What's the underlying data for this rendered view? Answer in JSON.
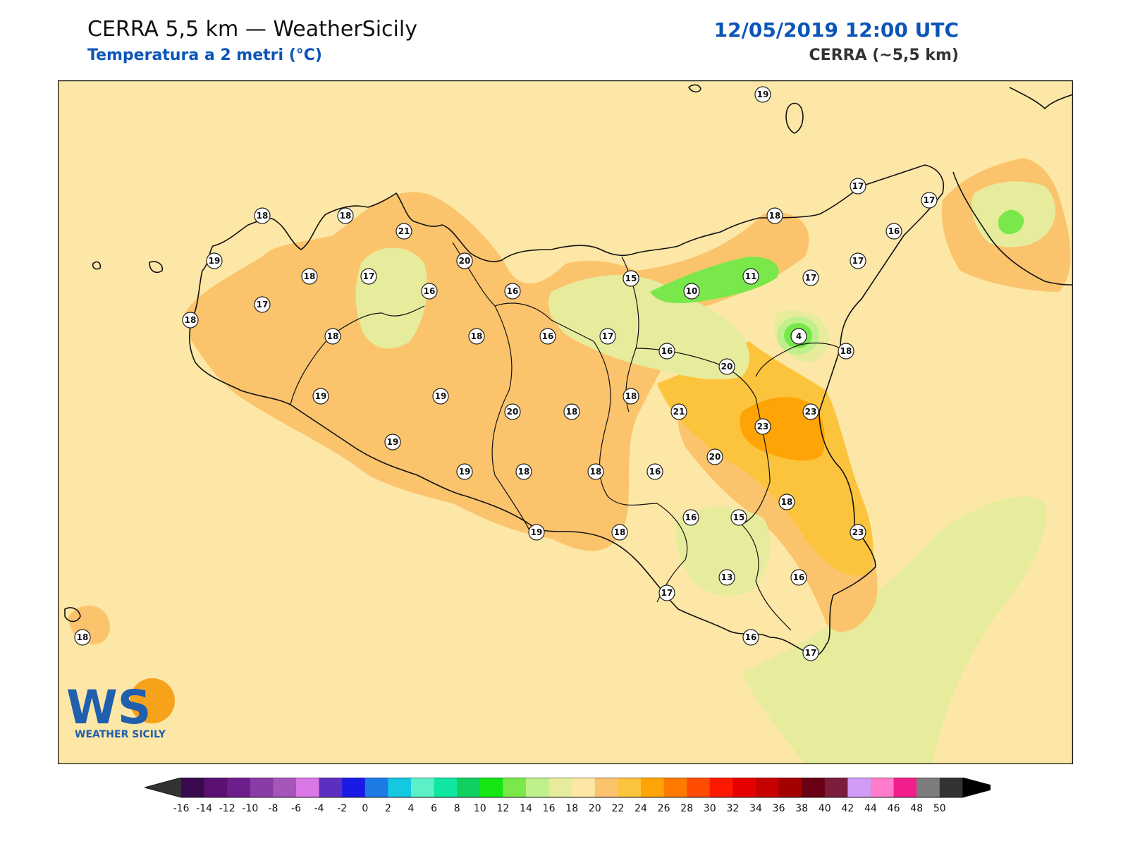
{
  "header": {
    "title": "CERRA 5,5 km — WeatherSicily",
    "subtitle": "Temperatura a 2 metri (°C)",
    "datetime": "12/05/2019 12:00 UTC",
    "model": "CERRA (~5,5 km)"
  },
  "logo": {
    "text": "WS",
    "caption": "WEATHER SICILY"
  },
  "colorbar": {
    "ticks": [
      "-16",
      "-14",
      "-12",
      "-10",
      "-8",
      "-6",
      "-4",
      "-2",
      "0",
      "2",
      "4",
      "6",
      "8",
      "10",
      "12",
      "14",
      "16",
      "18",
      "20",
      "22",
      "24",
      "26",
      "28",
      "30",
      "32",
      "34",
      "36",
      "38",
      "40",
      "42",
      "44",
      "46",
      "48",
      "50"
    ],
    "colors": [
      "#3a0a4e",
      "#5b1172",
      "#6d1e8c",
      "#8a3ca6",
      "#a556b8",
      "#d978e6",
      "#5a2fc2",
      "#1a1ae6",
      "#1e7be6",
      "#14c8e0",
      "#5cf0c8",
      "#10e6a0",
      "#10d060",
      "#14e614",
      "#7ae84a",
      "#c0f08c",
      "#e6ec9c",
      "#fde7a6",
      "#fbc46c",
      "#fcc43c",
      "#ffa406",
      "#ff7b00",
      "#ff4c00",
      "#ff1800",
      "#e60000",
      "#c70000",
      "#a30000",
      "#6a0014",
      "#7a1e3c",
      "#d19cf6",
      "#ff7ccc",
      "#f21e8c",
      "#7c7c7c",
      "#333333"
    ],
    "under_color": "#333333",
    "over_color": "#000000"
  },
  "stations": [
    {
      "label": "18"
    },
    {
      "label": "19"
    },
    {
      "label": "17"
    },
    {
      "label": "17"
    },
    {
      "label": "16"
    },
    {
      "label": "18"
    },
    {
      "label": "18"
    },
    {
      "label": "21"
    },
    {
      "label": "19"
    },
    {
      "label": "18"
    },
    {
      "label": "17"
    },
    {
      "label": "20"
    },
    {
      "label": "16"
    },
    {
      "label": "15"
    },
    {
      "label": "11"
    },
    {
      "label": "17"
    },
    {
      "label": "17"
    },
    {
      "label": "17"
    },
    {
      "label": "16"
    },
    {
      "label": "20"
    },
    {
      "label": "10"
    },
    {
      "label": "18"
    },
    {
      "label": "15"
    },
    {
      "label": "18"
    },
    {
      "label": "16"
    },
    {
      "label": "17"
    },
    {
      "label": "4"
    },
    {
      "label": "16"
    },
    {
      "label": "18"
    },
    {
      "label": "18"
    },
    {
      "label": "20"
    },
    {
      "label": "19"
    },
    {
      "label": "19"
    },
    {
      "label": "20"
    },
    {
      "label": "18"
    },
    {
      "label": "18"
    },
    {
      "label": "21"
    },
    {
      "label": "23"
    },
    {
      "label": "23"
    },
    {
      "label": "19"
    },
    {
      "label": "20"
    },
    {
      "label": "19"
    },
    {
      "label": "18"
    },
    {
      "label": "18"
    },
    {
      "label": "16"
    },
    {
      "label": "18"
    },
    {
      "label": "16"
    },
    {
      "label": "15"
    },
    {
      "label": "23"
    },
    {
      "label": "19"
    },
    {
      "label": "18"
    },
    {
      "label": "17"
    },
    {
      "label": "13"
    },
    {
      "label": "16"
    },
    {
      "label": "16"
    },
    {
      "label": "17"
    },
    {
      "label": "18"
    }
  ]
}
